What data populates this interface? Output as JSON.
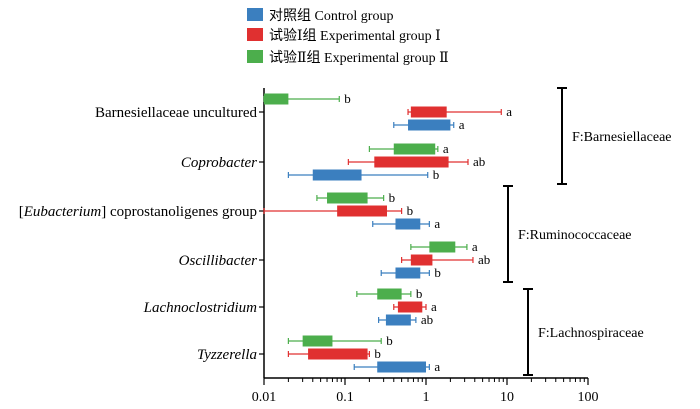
{
  "chart_data": {
    "type": "boxplot",
    "orientation": "horizontal",
    "x_scale": "log",
    "xlim": [
      0.01,
      100
    ],
    "x_ticks": [
      "0.01",
      "0.1",
      "1",
      "10",
      "100"
    ],
    "x_tick_values": [
      0.01,
      0.1,
      1,
      10,
      100
    ],
    "grid": false,
    "legend_position": "top",
    "series": [
      {
        "key": "control",
        "name": "对照组 Control group",
        "color": "#3b7fbf"
      },
      {
        "key": "exp1",
        "name": "试验Ⅰ组  Experimental group Ⅰ",
        "color": "#e03030"
      },
      {
        "key": "exp2",
        "name": "试验Ⅱ组  Experimental group Ⅱ",
        "color": "#4cae4c"
      }
    ],
    "categories": [
      {
        "label_parts": [
          {
            "text": "Barnesiellaceae uncultured",
            "italic": false
          }
        ],
        "boxes": {
          "exp2": {
            "whisker_low": 0.01,
            "q1": 0.01,
            "q3": 0.02,
            "whisker_high": 0.085,
            "sig": "b"
          },
          "exp1": {
            "whisker_low": 0.6,
            "q1": 0.65,
            "q3": 1.8,
            "whisker_high": 8.5,
            "sig": "a"
          },
          "control": {
            "whisker_low": 0.4,
            "q1": 0.6,
            "q3": 2.0,
            "whisker_high": 2.2,
            "sig": "a"
          }
        }
      },
      {
        "label_parts": [
          {
            "text": "Coprobacter",
            "italic": true
          }
        ],
        "boxes": {
          "exp2": {
            "whisker_low": 0.2,
            "q1": 0.4,
            "q3": 1.3,
            "whisker_high": 1.4,
            "sig": "a"
          },
          "exp1": {
            "whisker_low": 0.11,
            "q1": 0.23,
            "q3": 1.9,
            "whisker_high": 3.3,
            "sig": "ab"
          },
          "control": {
            "whisker_low": 0.02,
            "q1": 0.04,
            "q3": 0.16,
            "whisker_high": 1.05,
            "sig": "b"
          }
        }
      },
      {
        "label_parts": [
          {
            "text": "[",
            "italic": false
          },
          {
            "text": "Eubacterium",
            "italic": true
          },
          {
            "text": "] coprostanoligenes group",
            "italic": false
          }
        ],
        "boxes": {
          "exp2": {
            "whisker_low": 0.045,
            "q1": 0.06,
            "q3": 0.19,
            "whisker_high": 0.3,
            "sig": "b"
          },
          "exp1": {
            "whisker_low": 0.01,
            "q1": 0.08,
            "q3": 0.33,
            "whisker_high": 0.5,
            "sig": "b"
          },
          "control": {
            "whisker_low": 0.22,
            "q1": 0.42,
            "q3": 0.85,
            "whisker_high": 1.1,
            "sig": "a"
          }
        }
      },
      {
        "label_parts": [
          {
            "text": "Oscillibacter",
            "italic": true
          }
        ],
        "boxes": {
          "exp2": {
            "whisker_low": 0.65,
            "q1": 1.1,
            "q3": 2.3,
            "whisker_high": 3.2,
            "sig": "a"
          },
          "exp1": {
            "whisker_low": 0.5,
            "q1": 0.65,
            "q3": 1.2,
            "whisker_high": 3.8,
            "sig": "ab"
          },
          "control": {
            "whisker_low": 0.28,
            "q1": 0.42,
            "q3": 0.85,
            "whisker_high": 1.1,
            "sig": "b"
          }
        }
      },
      {
        "label_parts": [
          {
            "text": "Lachnoclostridium",
            "italic": true
          }
        ],
        "boxes": {
          "exp2": {
            "whisker_low": 0.14,
            "q1": 0.25,
            "q3": 0.5,
            "whisker_high": 0.65,
            "sig": "b"
          },
          "exp1": {
            "whisker_low": 0.4,
            "q1": 0.45,
            "q3": 0.9,
            "whisker_high": 1.0,
            "sig": "a"
          },
          "control": {
            "whisker_low": 0.26,
            "q1": 0.32,
            "q3": 0.65,
            "whisker_high": 0.75,
            "sig": "ab"
          }
        }
      },
      {
        "label_parts": [
          {
            "text": "Tyzzerella",
            "italic": true
          }
        ],
        "boxes": {
          "exp2": {
            "whisker_low": 0.02,
            "q1": 0.03,
            "q3": 0.07,
            "whisker_high": 0.28,
            "sig": "b"
          },
          "exp1": {
            "whisker_low": 0.02,
            "q1": 0.035,
            "q3": 0.19,
            "whisker_high": 0.2,
            "sig": "b"
          },
          "control": {
            "whisker_low": 0.13,
            "q1": 0.25,
            "q3": 1.0,
            "whisker_high": 1.1,
            "sig": "a"
          }
        }
      }
    ],
    "families": [
      {
        "label": "F:Barnesiellaceae",
        "from_category": 0,
        "to_category": 1
      },
      {
        "label": "F:Ruminococcaceae",
        "from_category": 2,
        "to_category": 3
      },
      {
        "label": "F:Lachnospiraceae",
        "from_category": 4,
        "to_category": 5
      }
    ]
  }
}
